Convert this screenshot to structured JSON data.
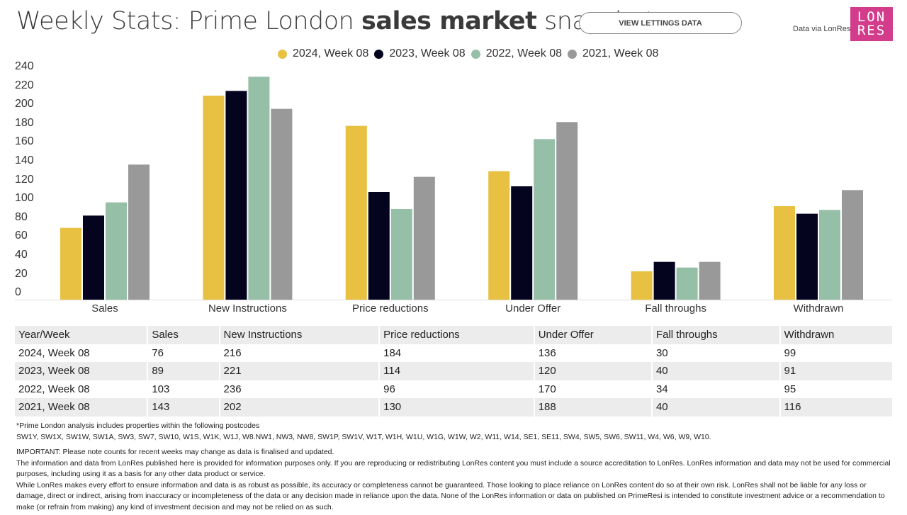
{
  "header": {
    "title_pre": "Weekly Stats: Prime London ",
    "title_bold": "sales market",
    "title_post": " snapshot",
    "lettings_button": "VIEW LETTINGS DATA",
    "data_via": "Data via LonRes",
    "logo_line1": "LON",
    "logo_line2": "RES",
    "logo_color": "#d23c8a"
  },
  "chart_data": {
    "type": "bar",
    "title": "Weekly Stats: Prime London sales market snapshot",
    "xlabel": "",
    "ylabel": "",
    "ylim": [
      0,
      240
    ],
    "yticks": [
      "240",
      "220",
      "200",
      "180",
      "160",
      "140",
      "120",
      "100",
      "80",
      "60",
      "40",
      "20",
      "0"
    ],
    "legend_position": "top-center",
    "grid": false,
    "categories": [
      "Sales",
      "New Instructions",
      "Price reductions",
      "Under Offer",
      "Fall throughs",
      "Withdrawn"
    ],
    "series": [
      {
        "name": "2024, Week 08",
        "color": "#e8c142",
        "values": [
          76,
          216,
          184,
          136,
          30,
          99
        ]
      },
      {
        "name": "2023, Week 08",
        "color": "#05041e",
        "values": [
          89,
          221,
          114,
          120,
          40,
          91
        ]
      },
      {
        "name": "2022, Week 08",
        "color": "#96bfa8",
        "values": [
          103,
          236,
          96,
          170,
          34,
          95
        ]
      },
      {
        "name": "2021, Week 08",
        "color": "#999999",
        "values": [
          143,
          202,
          130,
          188,
          40,
          116
        ]
      }
    ]
  },
  "table": {
    "headers": [
      "Year/Week",
      "Sales",
      "New Instructions",
      "Price reductions",
      "Under Offer",
      "Fall throughs",
      "Withdrawn"
    ],
    "rows": [
      [
        "2024, Week 08",
        "76",
        "216",
        "184",
        "136",
        "30",
        "99"
      ],
      [
        "2023, Week 08",
        "89",
        "221",
        "114",
        "120",
        "40",
        "91"
      ],
      [
        "2022, Week 08",
        "103",
        "236",
        "96",
        "170",
        "34",
        "95"
      ],
      [
        "2021, Week 08",
        "143",
        "202",
        "130",
        "188",
        "40",
        "116"
      ]
    ]
  },
  "notes": {
    "postcode_intro": "*Prime London analysis includes properties within the following postcodes",
    "postcodes": "SW1Y, SW1X, SW1W, SW1A, SW3, SW7, SW10, W1S, W1K, W1J, W8.NW1, NW3, NW8, SW1P, SW1V, W1T, W1H, W1U, W1G, W1W, W2, W11, W14, SE1, SE11, SW4, SW5, SW6, SW11, W4, W6, W9, W10.",
    "important": "IMPORTANT: Please note counts for recent weeks may change as data is finalised and updated.",
    "disclaimer1": "The information and data from LonRes published here is provided for information purposes only. If you are reproducing or redistributing LonRes content you must include a source accreditation to LonRes. LonRes information and data may not be used for commercial purposes, including using it as a basis for any other data product or service.",
    "disclaimer2": "While LonRes makes every effort to ensure information and data is as robust as possible, its accuracy or completeness cannot be guaranteed. Those looking to place reliance on LonRes content do so at their own risk. LonRes shall not be liable for any loss or damage, direct or indirect, arising from inaccuracy or incompleteness of the data or any decision made in reliance upon the data. None of the LonRes information or data on published on PrimeResi is intended to constitute investment advice or a recommendation to make (or refrain from making) any kind of investment decision and may not be relied on as such."
  }
}
